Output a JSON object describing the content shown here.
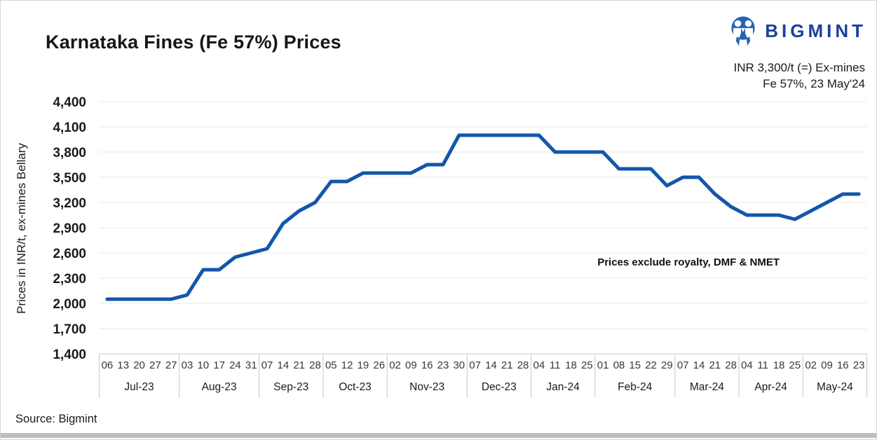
{
  "header": {
    "title": "Karnataka Fines (Fe 57%) Prices",
    "price_line1": "INR 3,300/t (=) Ex-mines",
    "price_line2": "Fe 57%, 23 May'24"
  },
  "brand": {
    "name": "BIGMINT",
    "logo_icon": "bigmint-people-icon"
  },
  "annotation": "Prices exclude royalty, DMF & NMET",
  "footer": {
    "source": "Source: Bigmint"
  },
  "colors": {
    "line_blue": "#1356AB",
    "brand_navy": "#1b3f9d",
    "icon_blue": "#2264b6",
    "grid": "#e8e8e8",
    "axis": "#c9c9c9"
  },
  "chart_data": {
    "type": "line",
    "title": "Karnataka Fines (Fe 57%) Prices",
    "xlabel": "",
    "ylabel": "Prices in INR/t, ex-mines Bellary",
    "ylim": [
      1400,
      4400
    ],
    "ytick_step": 300,
    "grid": "horizontal",
    "legend": "none",
    "line_color": "#1356AB",
    "months": [
      {
        "label": "Jul-23",
        "days": [
          "06",
          "13",
          "20",
          "27",
          "27"
        ]
      },
      {
        "label": "Aug-23",
        "days": [
          "03",
          "10",
          "17",
          "24",
          "31"
        ]
      },
      {
        "label": "Sep-23",
        "days": [
          "07",
          "14",
          "21",
          "28"
        ]
      },
      {
        "label": "Oct-23",
        "days": [
          "05",
          "12",
          "19",
          "26"
        ]
      },
      {
        "label": "Nov-23",
        "days": [
          "02",
          "09",
          "16",
          "23",
          "30"
        ]
      },
      {
        "label": "Dec-23",
        "days": [
          "07",
          "14",
          "21",
          "28"
        ]
      },
      {
        "label": "Jan-24",
        "days": [
          "04",
          "11",
          "18",
          "25"
        ]
      },
      {
        "label": "Feb-24",
        "days": [
          "01",
          "08",
          "15",
          "22",
          "29"
        ]
      },
      {
        "label": "Mar-24",
        "days": [
          "07",
          "14",
          "21",
          "28"
        ]
      },
      {
        "label": "Apr-24",
        "days": [
          "04",
          "11",
          "18",
          "25"
        ]
      },
      {
        "label": "May-24",
        "days": [
          "02",
          "09",
          "16",
          "23"
        ]
      }
    ],
    "values": [
      2050,
      2050,
      2050,
      2050,
      2050,
      2100,
      2400,
      2400,
      2550,
      2600,
      2650,
      2950,
      3100,
      3200,
      3450,
      3450,
      3550,
      3550,
      3550,
      3550,
      3650,
      3650,
      4000,
      4000,
      4000,
      4000,
      4000,
      4000,
      3800,
      3800,
      3800,
      3800,
      3600,
      3600,
      3600,
      3400,
      3500,
      3500,
      3300,
      3150,
      3050,
      3050,
      3050,
      3000,
      3100,
      3200,
      3300,
      3300
    ]
  }
}
